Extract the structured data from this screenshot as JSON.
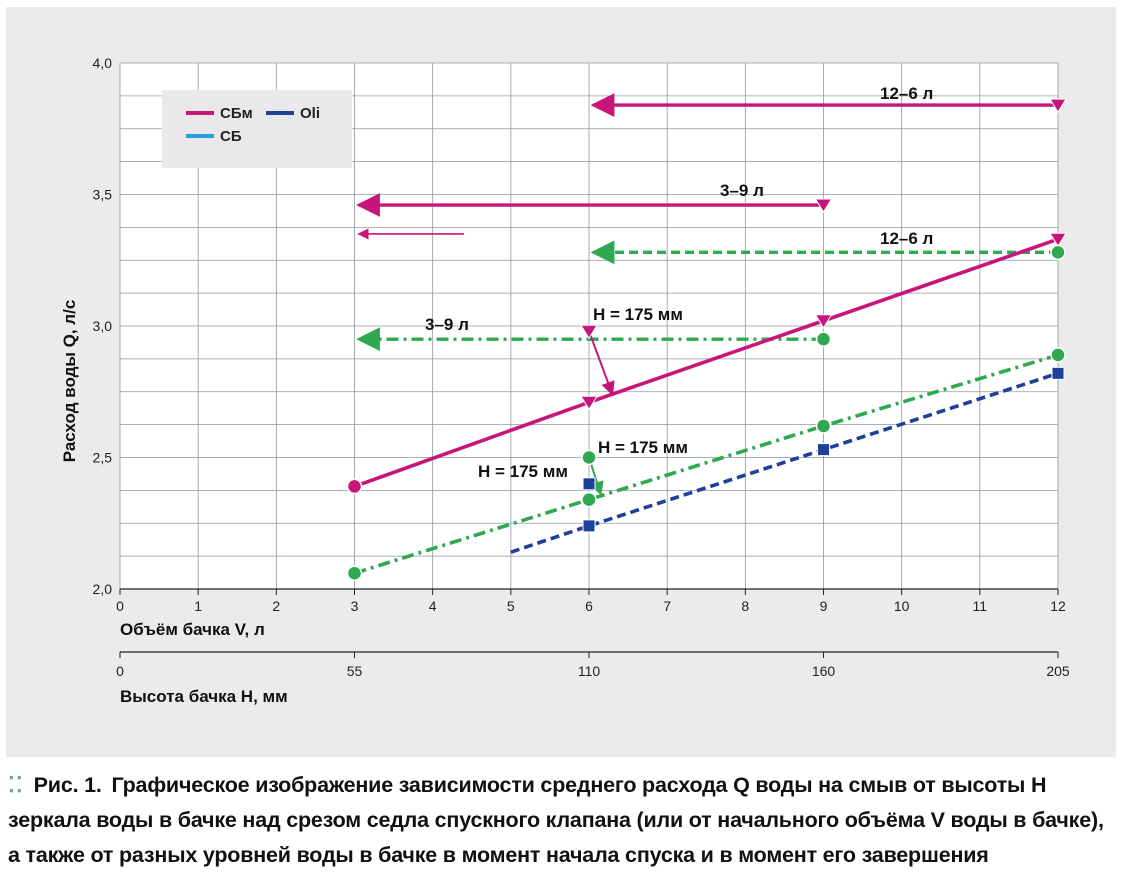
{
  "chart_data": {
    "type": "line",
    "ylabel": "Расход воды Q, л/с",
    "xlabel": "Объём бачка V, л",
    "x2label": "Высота бачка H, мм",
    "ylim": [
      2.0,
      4.0
    ],
    "xlim": [
      0,
      12
    ],
    "yticks": [
      "2,0",
      "2,5",
      "3,0",
      "3,5",
      "4,0"
    ],
    "xticks": [
      "0",
      "1",
      "2",
      "3",
      "4",
      "5",
      "6",
      "7",
      "8",
      "9",
      "10",
      "11",
      "12"
    ],
    "x2ticks": [
      {
        "label": "0",
        "v": 0
      },
      {
        "label": "55",
        "v": 3
      },
      {
        "label": "110",
        "v": 6
      },
      {
        "label": "160",
        "v": 9
      },
      {
        "label": "205",
        "v": 12
      }
    ],
    "grid": true,
    "legend_position": "top-left",
    "legend": [
      {
        "name": "СБм",
        "color": "#c8157a"
      },
      {
        "name": "СБ",
        "color": "#2a9fd6"
      },
      {
        "name": "Oli",
        "color": "#1e3f9a"
      }
    ],
    "series": [
      {
        "name": "СБм",
        "color": "#c8157a",
        "style": "solid",
        "points": [
          [
            3,
            2.39
          ],
          [
            6,
            2.71
          ],
          [
            9,
            3.02
          ],
          [
            12,
            3.33
          ]
        ]
      },
      {
        "name": "green dash-dot",
        "color": "#2fa84f",
        "style": "dashdot",
        "points": [
          [
            3,
            2.06
          ],
          [
            6,
            2.34
          ],
          [
            9,
            2.62
          ],
          [
            12,
            2.89
          ]
        ]
      },
      {
        "name": "Oli",
        "color": "#1e3f9a",
        "style": "dashed",
        "points": [
          [
            5,
            2.14
          ],
          [
            6,
            2.24
          ],
          [
            9,
            2.53
          ],
          [
            12,
            2.82
          ]
        ]
      }
    ],
    "arrows": [
      {
        "label": "12–6 л",
        "color": "#c8157a",
        "style": "solid",
        "from": [
          12,
          3.84
        ],
        "to": [
          6,
          3.84
        ]
      },
      {
        "label": "3–9 л",
        "color": "#c8157a",
        "style": "solid",
        "from": [
          9,
          3.46
        ],
        "to": [
          3,
          3.46
        ]
      },
      {
        "label": "",
        "color": "#c8157a",
        "style": "thin",
        "from": [
          4.4,
          3.35
        ],
        "to": [
          3,
          3.35
        ]
      },
      {
        "label": "12–6 л",
        "color": "#2fa84f",
        "style": "dashed",
        "from": [
          12,
          3.28
        ],
        "to": [
          6,
          3.28
        ]
      },
      {
        "label": "3–9 л",
        "color": "#2fa84f",
        "style": "dashdot",
        "from": [
          9,
          2.95
        ],
        "to": [
          3,
          2.95
        ]
      }
    ],
    "annotations": [
      {
        "text": "H = 175 мм",
        "color": "#c8157a",
        "marker": "triangle",
        "point": [
          6,
          2.98
        ],
        "target": [
          6.3,
          2.74
        ]
      },
      {
        "text": "H = 175 мм",
        "color": "#2fa84f",
        "marker": "circle",
        "point": [
          6,
          2.5
        ],
        "target": [
          6.15,
          2.36
        ]
      },
      {
        "text": "H = 175 мм",
        "color": "#1e3f9a",
        "marker": "square",
        "point": [
          6,
          2.4
        ],
        "target": [
          6.1,
          2.36
        ]
      }
    ],
    "extra_markers": [
      {
        "shape": "triangle",
        "color": "#c8157a",
        "point": [
          12,
          3.84
        ]
      },
      {
        "shape": "triangle",
        "color": "#c8157a",
        "point": [
          9,
          3.46
        ]
      },
      {
        "shape": "circle",
        "color": "#2fa84f",
        "point": [
          12,
          3.28
        ]
      },
      {
        "shape": "circle",
        "color": "#2fa84f",
        "point": [
          9,
          2.95
        ]
      }
    ]
  },
  "caption": {
    "label": "Рис. 1.",
    "text": "Графическое изображение зависимости среднего расхода Q воды на смыв от высоты H зеркала воды в бачке над срезом седла спускного клапана (или от начального объёма V воды в бачке), а также от разных уровней воды в бачке в момент начала спуска и в момент его завершения"
  }
}
